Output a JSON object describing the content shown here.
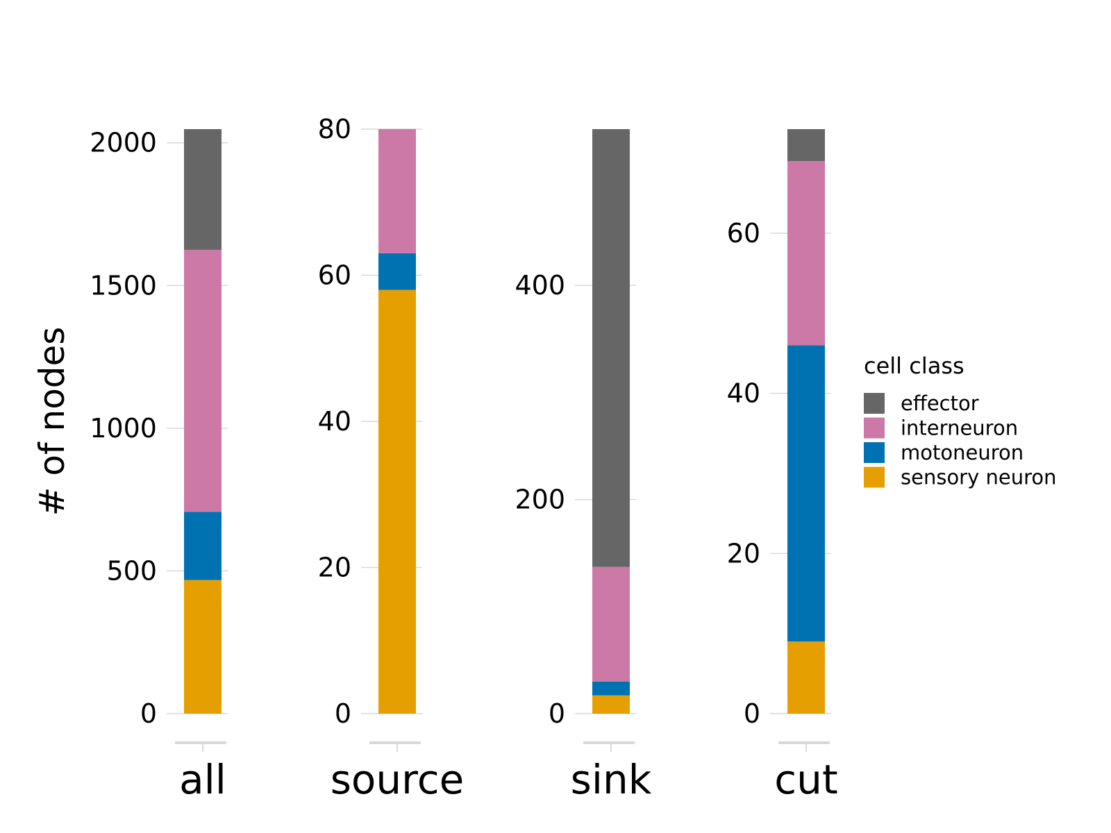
{
  "chart_data": {
    "type": "bar",
    "stacked": true,
    "ylabel": "# of nodes",
    "stack_order": [
      "sensory neuron",
      "motoneuron",
      "interneuron",
      "effector"
    ],
    "colors": {
      "effector": "#666666",
      "interneuron": "#CC79A7",
      "motoneuron": "#0072B2",
      "sensory neuron": "#E69F00"
    },
    "axis_color": "#d9d9d9",
    "legend": {
      "title": "cell class",
      "placement": "right",
      "entries": [
        "effector",
        "interneuron",
        "motoneuron",
        "sensory neuron"
      ]
    },
    "panels": [
      {
        "category": "all",
        "ylim": [
          0,
          2048
        ],
        "yticks": [
          0,
          500,
          1000,
          1500,
          2000
        ],
        "values": {
          "sensory neuron": 468,
          "motoneuron": 239,
          "interneuron": 918,
          "effector": 423
        }
      },
      {
        "category": "source",
        "ylim": [
          0,
          80
        ],
        "yticks": [
          0,
          20,
          40,
          60,
          80
        ],
        "values": {
          "sensory neuron": 58,
          "motoneuron": 5,
          "interneuron": 17,
          "effector": 0
        }
      },
      {
        "category": "sink",
        "ylim": [
          0,
          546
        ],
        "yticks": [
          0,
          200,
          400
        ],
        "values": {
          "sensory neuron": 17,
          "motoneuron": 13,
          "interneuron": 107,
          "effector": 409
        }
      },
      {
        "category": "cut",
        "ylim": [
          0,
          73
        ],
        "yticks": [
          0,
          20,
          40,
          60
        ],
        "values": {
          "sensory neuron": 9,
          "motoneuron": 37,
          "interneuron": 23,
          "effector": 4
        }
      }
    ]
  }
}
